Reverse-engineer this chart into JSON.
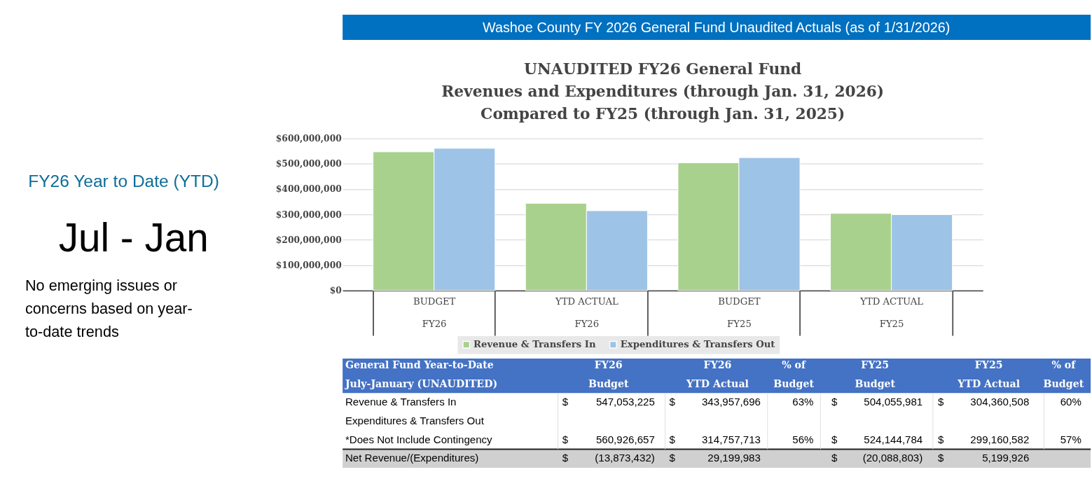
{
  "chart_data": {
    "type": "bar",
    "title": [
      "UNAUDITED FY26 General Fund",
      "Revenues and Expenditures (through Jan. 31, 2026)",
      "Compared to FY25 (through Jan. 31, 2025)"
    ],
    "categories": [
      "BUDGET\nFY26",
      "YTD ACTUAL\nFY26",
      "BUDGET\nFY25",
      "YTD ACTUAL\nFY25"
    ],
    "series": [
      {
        "name": "Revenue & Transfers In",
        "color": "#a9d18e",
        "values": [
          547053225,
          343957696,
          504055981,
          304360508
        ]
      },
      {
        "name": "Expenditures & Transfers Out",
        "color": "#9dc3e6",
        "values": [
          560926657,
          314757713,
          524144784,
          299160582
        ]
      }
    ],
    "ylim": [
      0,
      600000000
    ],
    "yticks": [
      {
        "value": 0,
        "label": "$0"
      },
      {
        "value": 100000000,
        "label": "$100,000,000"
      },
      {
        "value": 200000000,
        "label": "$200,000,000"
      },
      {
        "value": 300000000,
        "label": "$300,000,000"
      },
      {
        "value": 400000000,
        "label": "$400,000,000"
      },
      {
        "value": 500000000,
        "label": "$500,000,000"
      },
      {
        "value": 600000000,
        "label": "$600,000,000"
      }
    ],
    "grid": "y",
    "legend": "bottom",
    "annotations": [
      "Washoe County FY 2026 General Fund Unaudited Actuals (as of 1/31/2026)",
      "FY26 Year to Date (YTD)",
      "Jul - Jan",
      "No emerging issues or\nconcerns based on year-\nto-date trends",
      "General Fund Year-to-Date",
      "July-January (UNAUDITED)",
      "FY26",
      "Budget",
      "FY26",
      "YTD Actual",
      "% of",
      "Budget",
      "FY25",
      "Budget",
      "FY25",
      "YTD Actual",
      "% of",
      "Budget",
      "Revenue & Transfers In",
      "Expenditures & Transfers Out",
      "*Does Not Include Contingency",
      "Net Revenue/(Expenditures)",
      "63%",
      "60%",
      "56%",
      "57%",
      "(13,873,432)",
      "29,199,983",
      "(20,088,803)",
      "5,199,926",
      "$",
      "547,053,225",
      "343,957,696",
      "504,055,981",
      "304,360,508",
      "560,926,657",
      "314,757,713",
      "524,144,784",
      "299,160,582"
    ]
  }
}
